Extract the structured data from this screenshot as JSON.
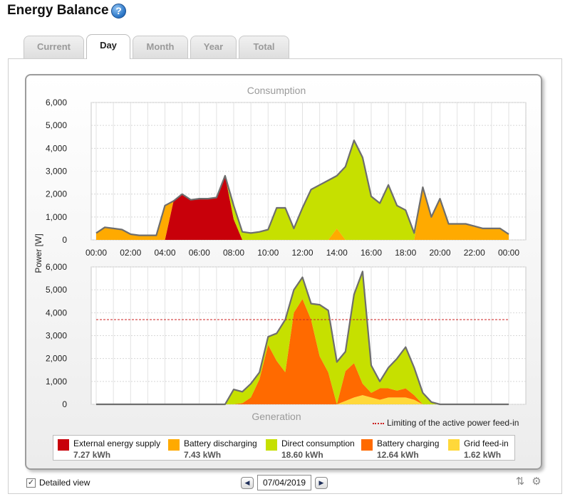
{
  "header": {
    "title": "Energy Balance",
    "help_icon": "help-question-icon"
  },
  "tabs": [
    {
      "label": "Current",
      "active": false
    },
    {
      "label": "Day",
      "active": true
    },
    {
      "label": "Month",
      "active": false
    },
    {
      "label": "Year",
      "active": false
    },
    {
      "label": "Total",
      "active": false
    }
  ],
  "colors": {
    "external": "#c8000a",
    "battery_discharging": "#ffaa00",
    "direct_consumption": "#c6e000",
    "battery_charging": "#ff6a00",
    "grid_feed_in": "#ffd83a",
    "outline": "#6e6e6e",
    "limit_line": "#cc2222"
  },
  "chart_data": [
    {
      "type": "area",
      "title": "Consumption",
      "ylabel": "Power [W]",
      "ylim": [
        0,
        6000
      ],
      "y_ticks": [
        "0",
        "1,000",
        "2,000",
        "3,000",
        "4,000",
        "5,000",
        "6,000"
      ],
      "x_ticks": [
        "00:00",
        "02:00",
        "04:00",
        "06:00",
        "08:00",
        "10:00",
        "12:00",
        "14:00",
        "16:00",
        "18:00",
        "20:00",
        "22:00",
        "00:00"
      ],
      "x_hours": [
        0.0,
        0.5,
        1.0,
        1.5,
        2.0,
        2.5,
        3.0,
        3.5,
        4.0,
        4.5,
        5.0,
        5.5,
        6.0,
        6.5,
        7.0,
        7.5,
        8.0,
        8.5,
        9.0,
        9.5,
        10.0,
        10.5,
        11.0,
        11.5,
        12.0,
        12.5,
        13.0,
        13.5,
        14.0,
        14.5,
        15.0,
        15.5,
        16.0,
        16.5,
        17.0,
        17.5,
        18.0,
        18.5,
        19.0,
        19.5,
        20.0,
        20.5,
        21.0,
        21.5,
        22.0,
        22.5,
        23.0,
        23.5,
        24.0
      ],
      "series": [
        {
          "name": "External energy supply",
          "color_key": "external",
          "values": [
            0,
            0,
            0,
            0,
            0,
            0,
            0,
            0,
            0,
            1700,
            2000,
            1750,
            1800,
            1800,
            1850,
            2800,
            900,
            0,
            0,
            0,
            0,
            0,
            0,
            0,
            0,
            0,
            0,
            0,
            0,
            0,
            0,
            0,
            0,
            0,
            0,
            0,
            0,
            0,
            0,
            0,
            0,
            0,
            0,
            0,
            0,
            0,
            0,
            0,
            0
          ]
        },
        {
          "name": "Battery discharging",
          "color_key": "battery_discharging",
          "values": [
            300,
            550,
            500,
            450,
            250,
            200,
            200,
            200,
            1500,
            0,
            0,
            0,
            0,
            0,
            0,
            0,
            0,
            0,
            0,
            0,
            0,
            0,
            0,
            0,
            0,
            0,
            0,
            0,
            500,
            0,
            0,
            0,
            0,
            0,
            0,
            0,
            0,
            0,
            2300,
            1000,
            1800,
            700,
            700,
            700,
            600,
            500,
            500,
            500,
            250
          ]
        },
        {
          "name": "Direct consumption",
          "color_key": "direct_consumption",
          "values": [
            0,
            0,
            0,
            0,
            0,
            0,
            0,
            0,
            0,
            0,
            0,
            0,
            0,
            0,
            0,
            0,
            600,
            350,
            300,
            350,
            450,
            1400,
            1400,
            500,
            1400,
            2200,
            2400,
            2600,
            2300,
            3200,
            4350,
            3600,
            1900,
            1600,
            2400,
            1500,
            1300,
            300,
            0,
            0,
            0,
            0,
            0,
            0,
            0,
            0,
            0,
            0,
            0
          ]
        }
      ]
    },
    {
      "type": "area",
      "title": "Generation",
      "ylabel": "Power [W]",
      "ylim": [
        0,
        6000
      ],
      "y_ticks": [
        "0",
        "1,000",
        "2,000",
        "3,000",
        "4,000",
        "5,000",
        "6,000"
      ],
      "x_hours": [
        0.0,
        0.5,
        1.0,
        1.5,
        2.0,
        2.5,
        3.0,
        3.5,
        4.0,
        4.5,
        5.0,
        5.5,
        6.0,
        6.5,
        7.0,
        7.5,
        8.0,
        8.5,
        9.0,
        9.5,
        10.0,
        10.5,
        11.0,
        11.5,
        12.0,
        12.5,
        13.0,
        13.5,
        14.0,
        14.5,
        15.0,
        15.5,
        16.0,
        16.5,
        17.0,
        17.5,
        18.0,
        18.5,
        19.0,
        19.5,
        20.0,
        20.5,
        21.0,
        21.5,
        22.0,
        22.5,
        23.0,
        23.5,
        24.0
      ],
      "limit_value": 3700,
      "series": [
        {
          "name": "Grid feed-in",
          "color_key": "grid_feed_in",
          "values": [
            0,
            0,
            0,
            0,
            0,
            0,
            0,
            0,
            0,
            0,
            0,
            0,
            0,
            0,
            0,
            0,
            0,
            0,
            0,
            0,
            0,
            0,
            0,
            0,
            0,
            0,
            0,
            0,
            0,
            150,
            300,
            400,
            300,
            200,
            300,
            300,
            300,
            200,
            0,
            0,
            0,
            0,
            0,
            0,
            0,
            0,
            0,
            0,
            0
          ]
        },
        {
          "name": "Battery charging",
          "color_key": "battery_charging",
          "values": [
            0,
            0,
            0,
            0,
            0,
            0,
            0,
            0,
            0,
            0,
            0,
            0,
            0,
            0,
            0,
            0,
            0,
            50,
            300,
            1100,
            2600,
            1900,
            1400,
            4000,
            4600,
            3700,
            2100,
            1400,
            0,
            1300,
            1500,
            500,
            200,
            500,
            400,
            300,
            400,
            200,
            0,
            0,
            0,
            0,
            0,
            0,
            0,
            0,
            0,
            0,
            0
          ]
        },
        {
          "name": "Direct consumption",
          "color_key": "direct_consumption",
          "values": [
            0,
            0,
            0,
            0,
            0,
            0,
            0,
            0,
            0,
            0,
            0,
            0,
            0,
            0,
            0,
            0,
            650,
            500,
            600,
            300,
            350,
            1200,
            2300,
            1000,
            950,
            700,
            2250,
            2700,
            1850,
            850,
            3000,
            4900,
            1200,
            300,
            900,
            1400,
            1800,
            1200,
            500,
            100,
            0,
            0,
            0,
            0,
            0,
            0,
            0,
            0,
            0
          ]
        }
      ]
    }
  ],
  "limit_legend": "Limiting of the active power feed-in",
  "legend": [
    {
      "label": "External energy supply",
      "value": "7.27 kWh",
      "color_key": "external"
    },
    {
      "label": "Battery discharging",
      "value": "7.43 kWh",
      "color_key": "battery_discharging"
    },
    {
      "label": "Direct consumption",
      "value": "18.60 kWh",
      "color_key": "direct_consumption"
    },
    {
      "label": "Battery charging",
      "value": "12.64 kWh",
      "color_key": "battery_charging"
    },
    {
      "label": "Grid feed-in",
      "value": "1.62 kWh",
      "color_key": "grid_feed_in"
    }
  ],
  "footer": {
    "detailed_view_label": "Detailed view",
    "detailed_view_checked": true,
    "date": "07/04/2019",
    "prev_icon": "triangle-left-icon",
    "next_icon": "triangle-right-icon",
    "export_icon": "export-icon",
    "settings_icon": "gear-icon"
  }
}
